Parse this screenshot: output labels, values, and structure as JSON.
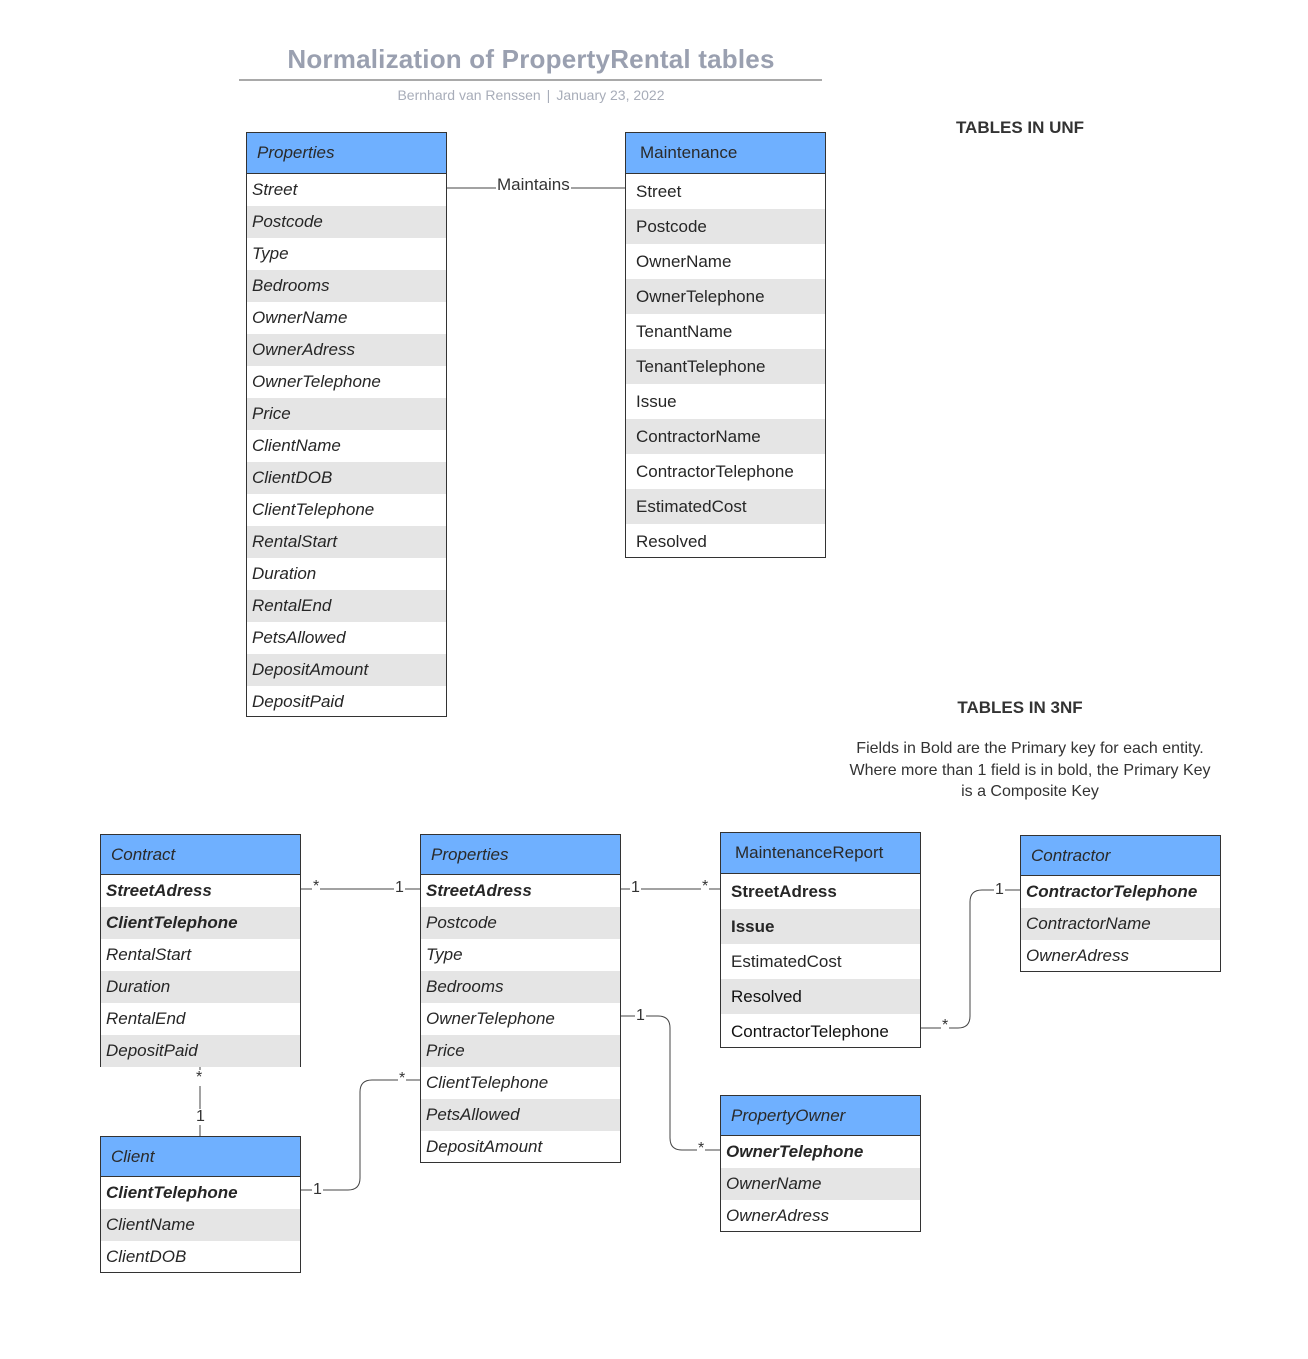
{
  "header": {
    "title": "Normalization of PropertyRental tables",
    "author": "Bernhard van Renssen",
    "separator": "|",
    "date": "January 23, 2022"
  },
  "sections": {
    "unf_label": "TABLES IN UNF",
    "nf3_label": "TABLES IN 3NF",
    "note": "Fields in Bold are the Primary key for each entity. Where more than 1 field is in bold, the Primary Key is a Composite Key"
  },
  "unf": {
    "properties": {
      "title": "Properties",
      "fields": [
        "Street",
        "Postcode",
        "Type",
        "Bedrooms",
        "OwnerName",
        "OwnerAdress",
        "OwnerTelephone",
        "Price",
        "ClientName",
        "ClientDOB",
        "ClientTelephone",
        "RentalStart",
        "Duration",
        "RentalEnd",
        "PetsAllowed",
        "DepositAmount",
        "DepositPaid"
      ]
    },
    "relationship_label": "Maintains",
    "maintenance": {
      "title": "Maintenance",
      "fields": [
        "Street",
        "Postcode",
        "OwnerName",
        "OwnerTelephone",
        "TenantName",
        "TenantTelephone",
        "Issue",
        "ContractorName",
        "ContractorTelephone",
        "EstimatedCost",
        "Resolved"
      ]
    }
  },
  "nf3": {
    "contract": {
      "title": "Contract",
      "fields": [
        "StreetAdress",
        "ClientTelephone",
        "RentalStart",
        "Duration",
        "RentalEnd",
        "DepositPaid"
      ]
    },
    "client": {
      "title": "Client",
      "fields": [
        "ClientTelephone",
        "ClientName",
        "ClientDOB"
      ]
    },
    "properties": {
      "title": "Properties",
      "fields": [
        "StreetAdress",
        "Postcode",
        "Type",
        "Bedrooms",
        "OwnerTelephone",
        "Price",
        "ClientTelephone",
        "PetsAllowed",
        "DepositAmount"
      ]
    },
    "maintenance_report": {
      "title": "MaintenanceReport",
      "fields": [
        "StreetAdress",
        "Issue",
        "EstimatedCost",
        "Resolved",
        "ContractorTelephone"
      ]
    },
    "property_owner": {
      "title": "PropertyOwner",
      "fields": [
        "OwnerTelephone",
        "OwnerName",
        "OwnerAdress"
      ]
    },
    "contractor": {
      "title": "Contractor",
      "fields": [
        "ContractorTelephone",
        "ContractorName",
        "OwnerAdress"
      ]
    },
    "cardinality": {
      "contract_properties": [
        "*",
        "1"
      ],
      "properties_maintenance": [
        "1",
        "*"
      ],
      "maintenance_contractor": [
        "*",
        "1"
      ],
      "properties_owner": [
        "1",
        "*"
      ],
      "properties_client": [
        "*",
        "1"
      ],
      "contract_client": [
        "*",
        "1"
      ]
    }
  },
  "colors": {
    "header_fill": "#6fb0ff",
    "alt_row_fill": "#e5e5e5",
    "border": "#333333",
    "title_text": "#9aa0b0"
  }
}
